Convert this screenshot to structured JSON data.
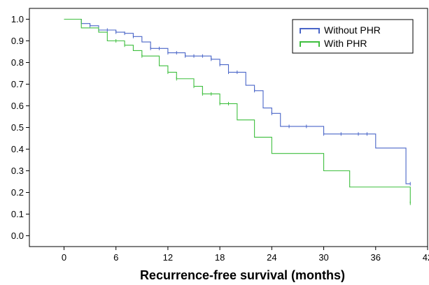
{
  "chart_data": {
    "type": "line",
    "step": true,
    "title": "",
    "xlabel": "Recurrence-free survival (months)",
    "ylabel": "",
    "xlim": [
      -4,
      42
    ],
    "ylim": [
      -0.05,
      1.05
    ],
    "xticks": [
      0,
      6,
      12,
      18,
      24,
      30,
      36,
      42
    ],
    "yticks": [
      0.0,
      0.1,
      0.2,
      0.3,
      0.4,
      0.5,
      0.6,
      0.7,
      0.8,
      0.9,
      1.0
    ],
    "ytick_labels": [
      "0.0",
      "0.1",
      "0.2",
      "0.3",
      "0.4",
      "0.5",
      "0.6",
      "0.7",
      "0.8",
      "0.9",
      "1.0"
    ],
    "grid": false,
    "legend": {
      "position": "top-right"
    },
    "series": [
      {
        "name": "Without PHR",
        "color": "#4a66c8",
        "x": [
          0,
          2,
          3,
          4,
          6,
          7,
          8,
          9,
          10,
          12,
          14,
          17,
          18,
          19,
          21,
          22,
          23,
          24,
          25,
          30,
          36,
          39.5,
          40
        ],
        "y": [
          1.0,
          0.98,
          0.97,
          0.95,
          0.94,
          0.935,
          0.92,
          0.895,
          0.865,
          0.845,
          0.83,
          0.815,
          0.79,
          0.755,
          0.695,
          0.67,
          0.59,
          0.565,
          0.505,
          0.47,
          0.405,
          0.24,
          0.24
        ],
        "censored": [
          [
            3,
            0.97
          ],
          [
            5,
            0.95
          ],
          [
            6,
            0.94
          ],
          [
            7,
            0.935
          ],
          [
            8,
            0.92
          ],
          [
            10,
            0.865
          ],
          [
            11,
            0.865
          ],
          [
            12,
            0.845
          ],
          [
            13,
            0.845
          ],
          [
            14,
            0.83
          ],
          [
            15,
            0.83
          ],
          [
            16,
            0.83
          ],
          [
            17,
            0.815
          ],
          [
            18,
            0.79
          ],
          [
            19,
            0.755
          ],
          [
            20,
            0.755
          ],
          [
            22,
            0.67
          ],
          [
            24,
            0.565
          ],
          [
            26,
            0.505
          ],
          [
            28,
            0.505
          ],
          [
            30,
            0.47
          ],
          [
            32,
            0.47
          ],
          [
            34,
            0.47
          ],
          [
            35,
            0.47
          ],
          [
            40,
            0.24
          ]
        ]
      },
      {
        "name": "With PHR",
        "color": "#3fbf3f",
        "x": [
          0,
          2,
          4,
          5,
          7,
          8,
          9,
          11,
          12,
          13,
          15,
          16,
          18,
          20,
          22,
          24,
          30,
          33,
          40
        ],
        "y": [
          1.0,
          0.96,
          0.94,
          0.9,
          0.88,
          0.855,
          0.83,
          0.785,
          0.755,
          0.725,
          0.69,
          0.655,
          0.61,
          0.535,
          0.455,
          0.38,
          0.3,
          0.225,
          0.15
        ],
        "censored": [
          [
            6,
            0.9
          ],
          [
            7,
            0.88
          ],
          [
            9,
            0.83
          ],
          [
            12,
            0.755
          ],
          [
            13,
            0.725
          ],
          [
            15,
            0.69
          ],
          [
            16,
            0.655
          ],
          [
            17,
            0.655
          ],
          [
            18,
            0.61
          ],
          [
            19,
            0.61
          ],
          [
            40,
            0.15
          ]
        ]
      }
    ]
  }
}
